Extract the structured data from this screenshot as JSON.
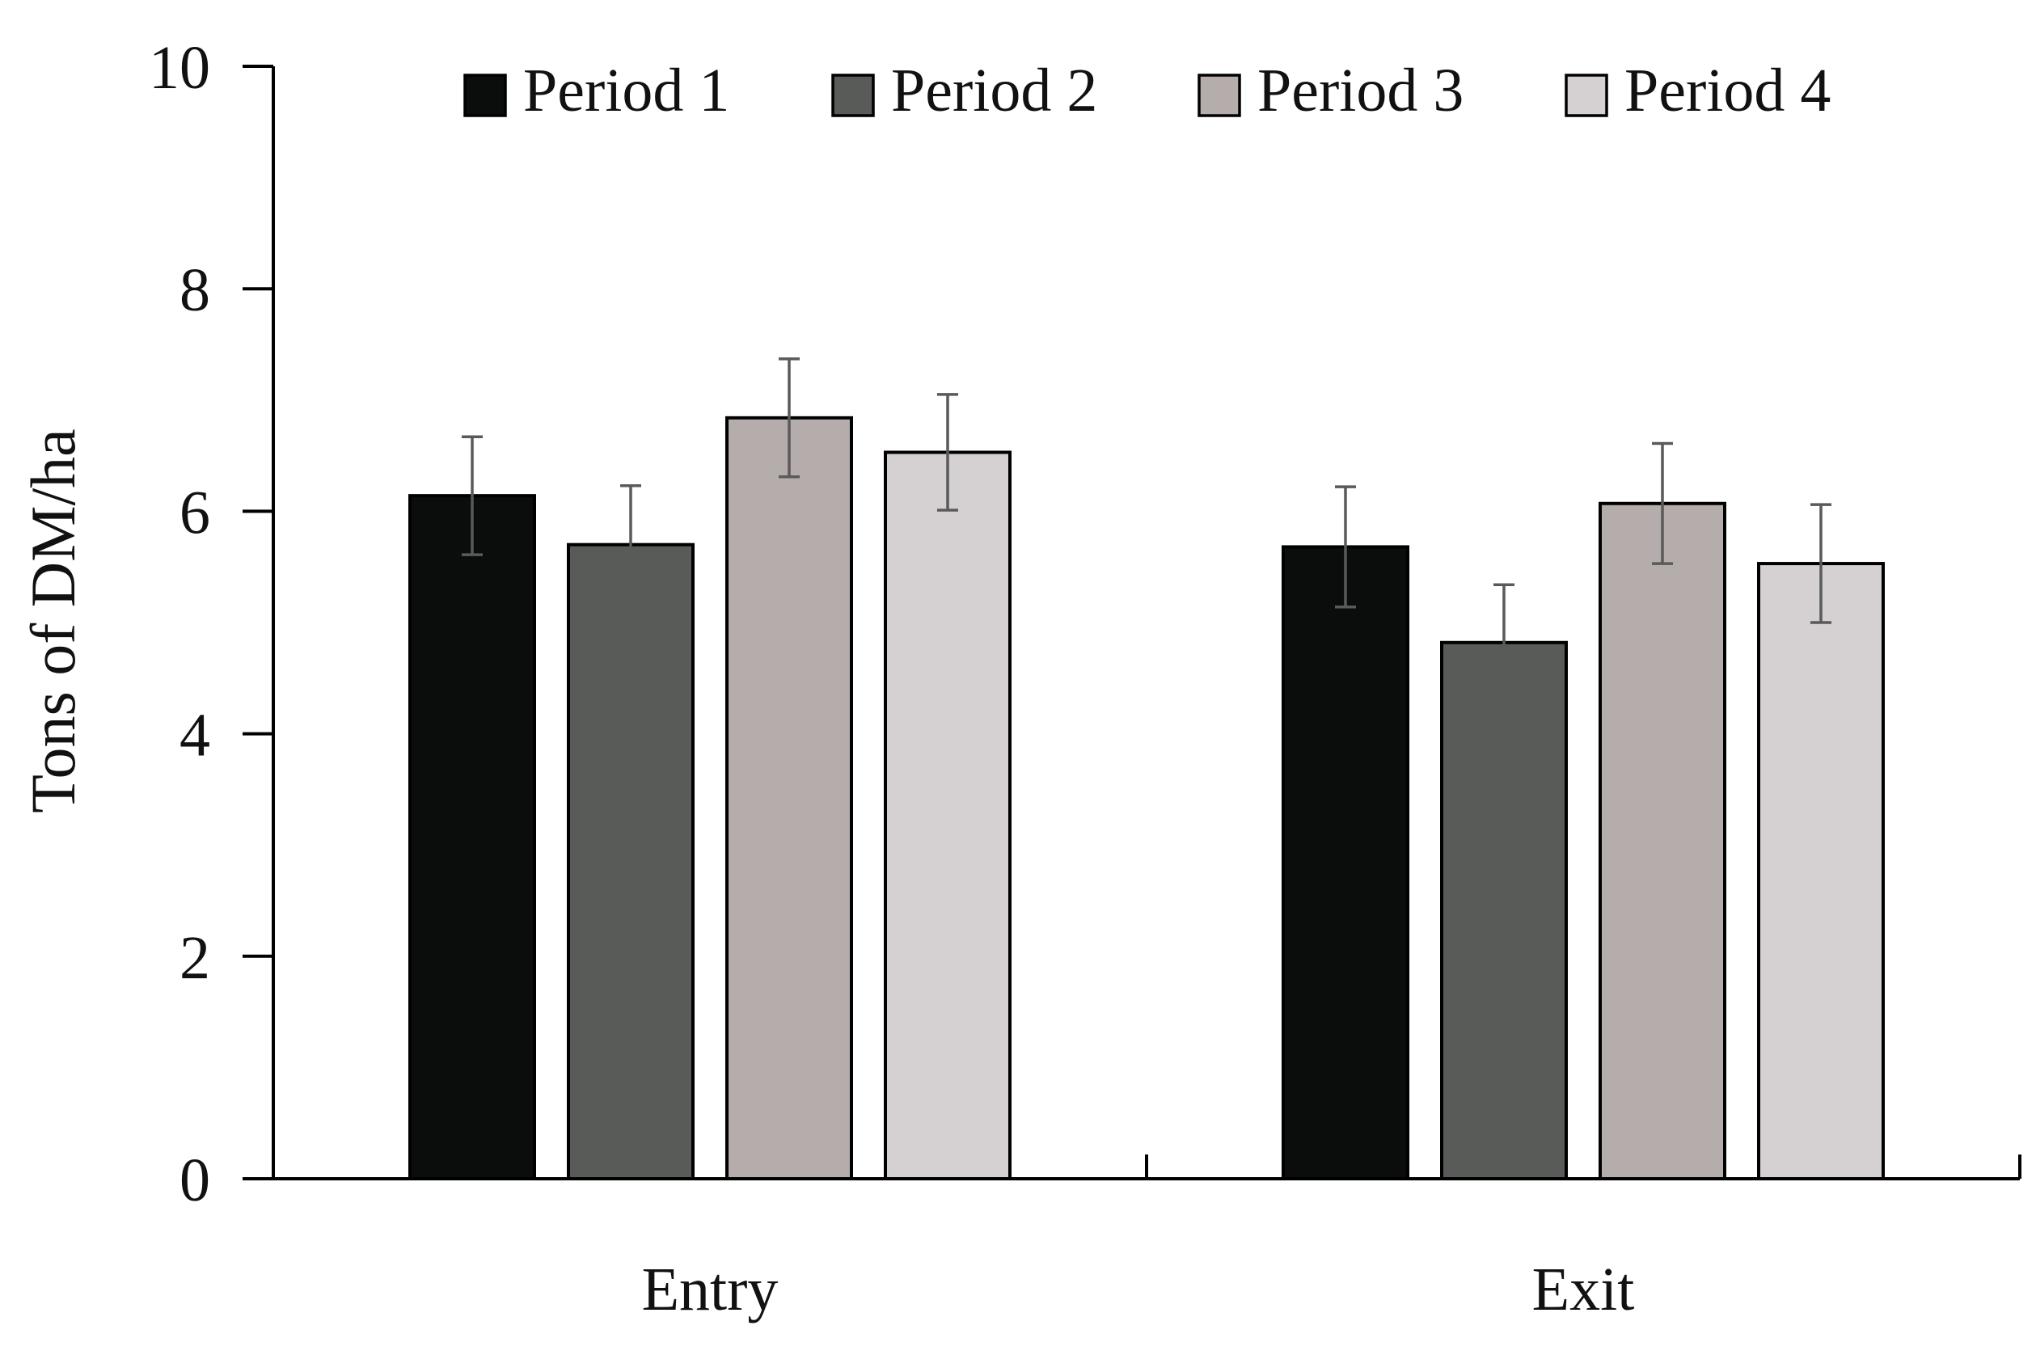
{
  "chart_data": {
    "type": "bar",
    "title": "",
    "xlabel": "",
    "ylabel": "Tons of DM/ha",
    "ylim": [
      0,
      10
    ],
    "yticks": [
      "0",
      "2",
      "4",
      "6",
      "8",
      "10"
    ],
    "categories": [
      "Entry",
      "Exit"
    ],
    "grid": false,
    "legend_position": "top",
    "series": [
      {
        "name": "Period 1",
        "color": "#0b0d0d",
        "values": [
          6.14,
          5.68
        ],
        "errors": [
          0.53,
          0.54
        ]
      },
      {
        "name": "Period 2",
        "color": "#595b59",
        "values": [
          5.7,
          4.82
        ],
        "errors": [
          0.53,
          0.52
        ]
      },
      {
        "name": "Period 3",
        "color": "#b5adab",
        "values": [
          6.84,
          6.07
        ],
        "errors": [
          0.53,
          0.54
        ]
      },
      {
        "name": "Period 4",
        "color": "#d5d1d2",
        "values": [
          6.53,
          5.53
        ],
        "errors": [
          0.52,
          0.53
        ]
      }
    ]
  }
}
